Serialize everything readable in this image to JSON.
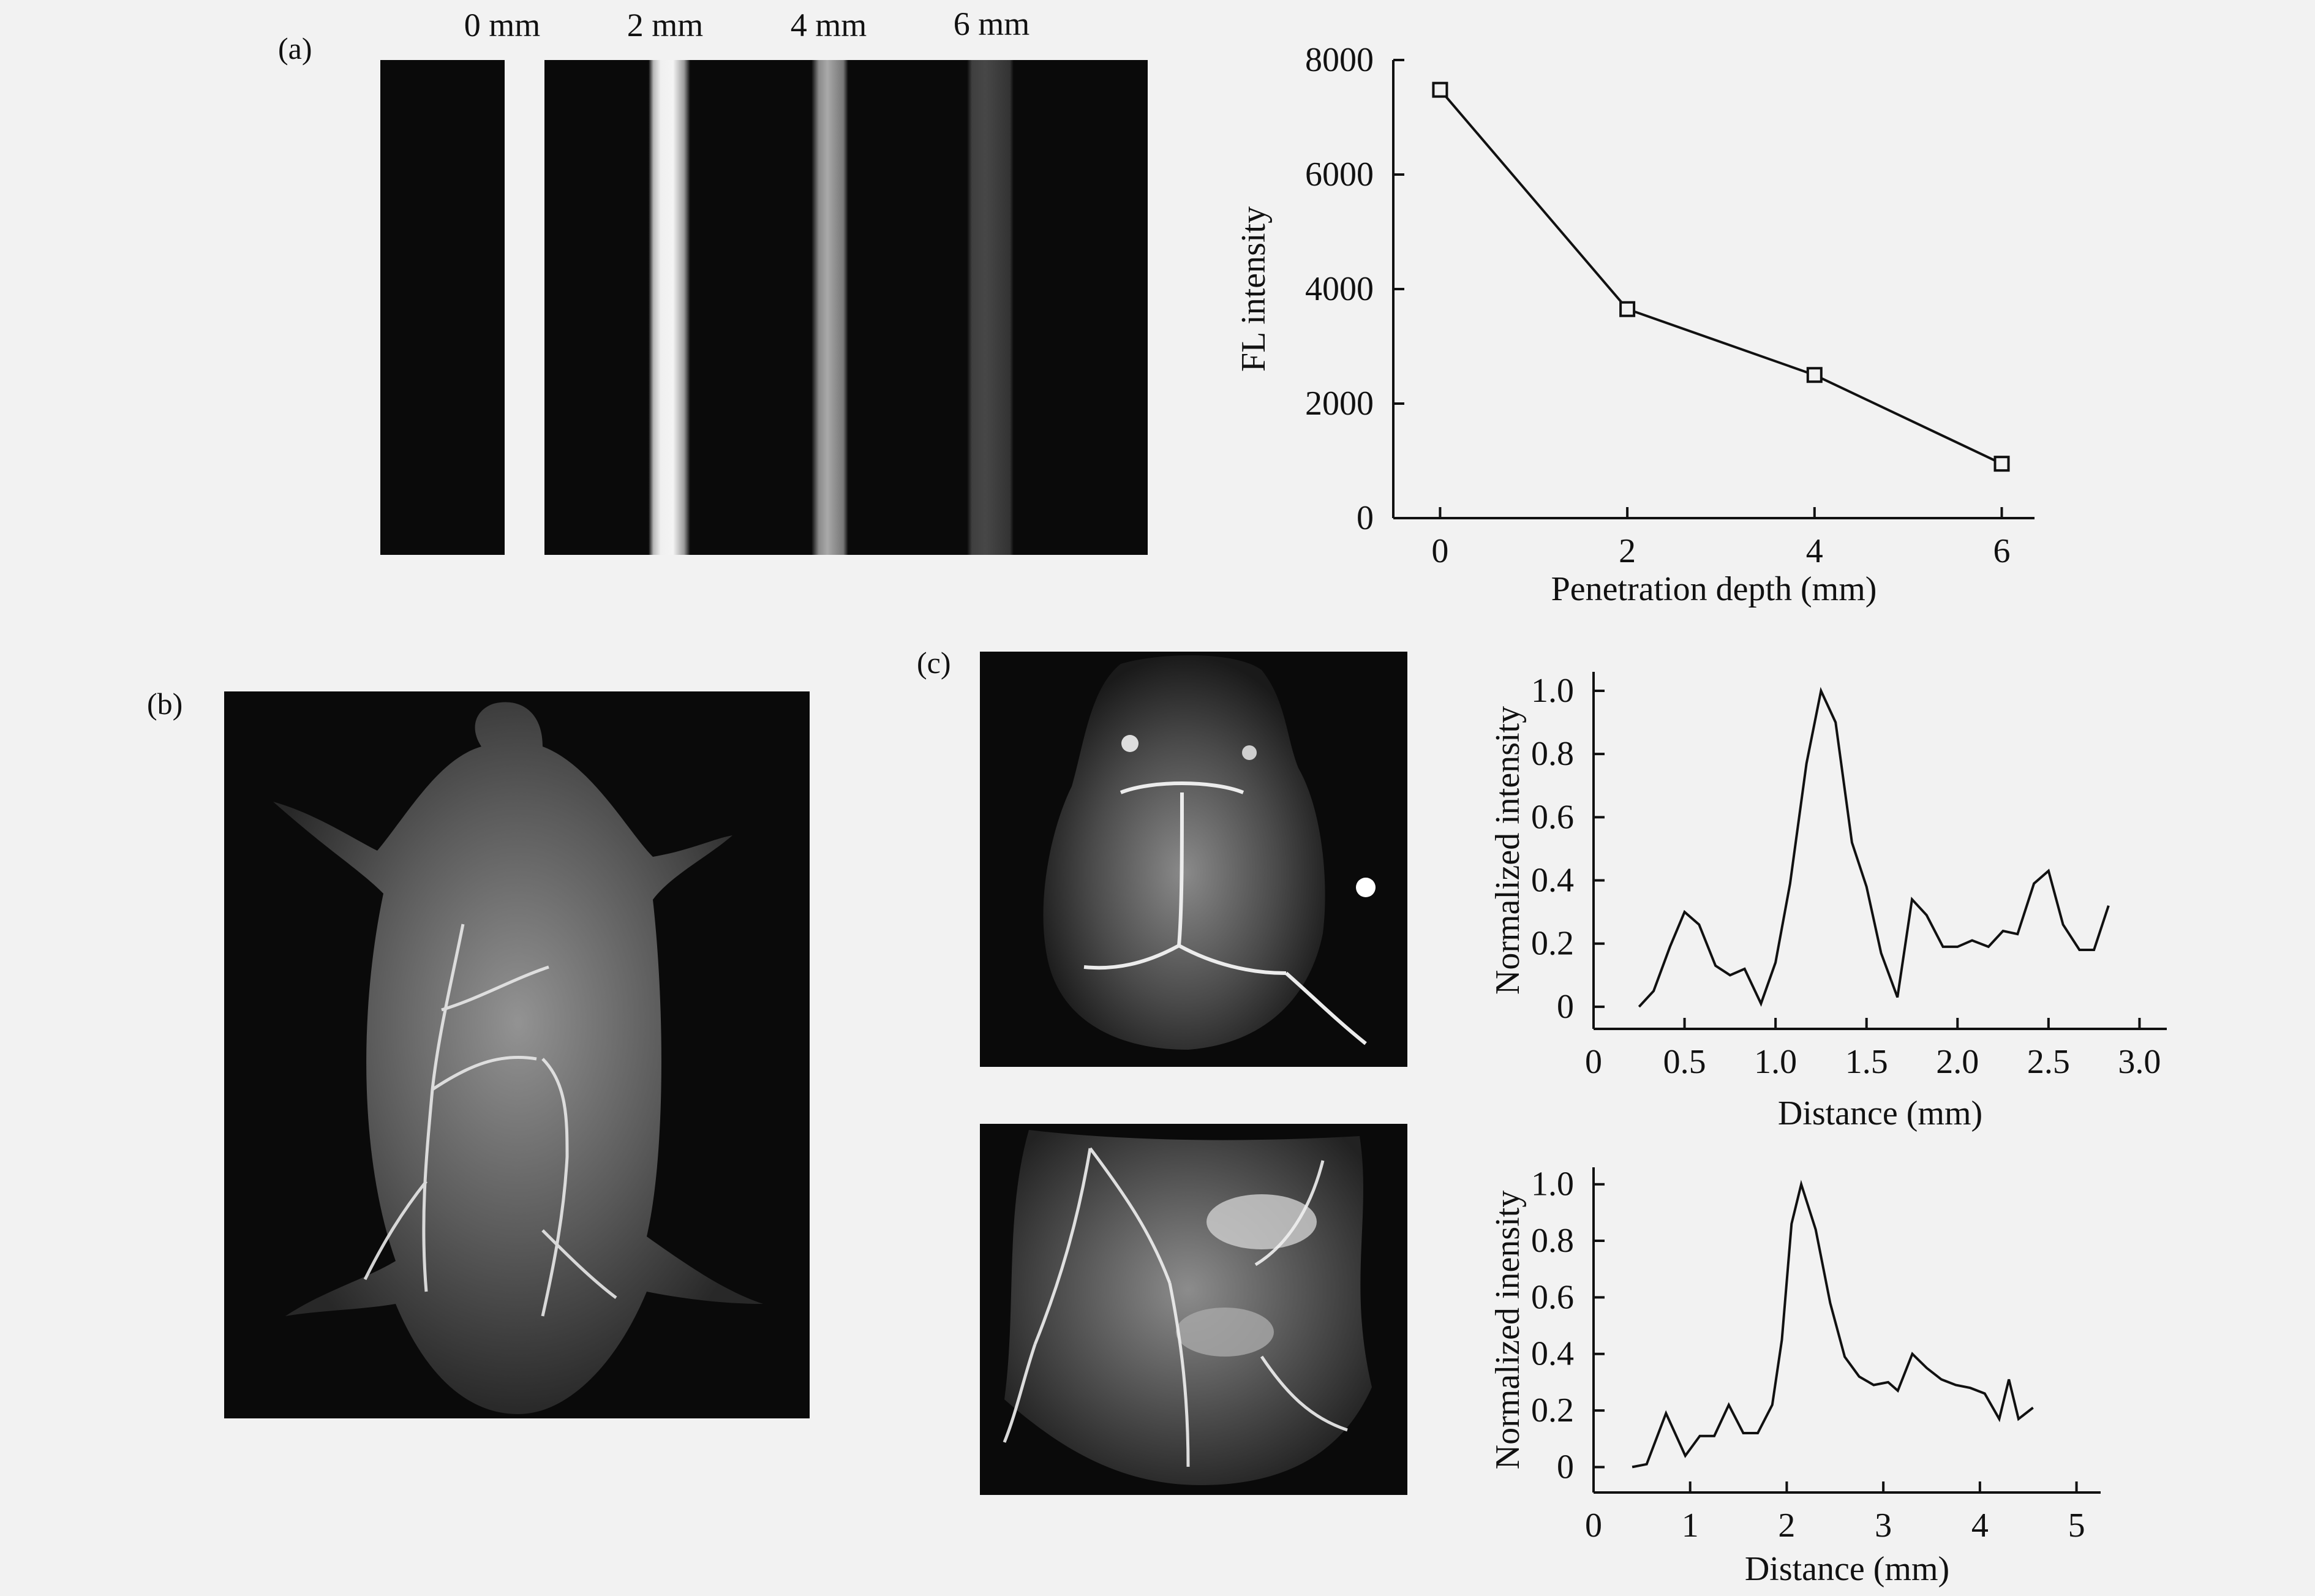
{
  "panels": {
    "a": {
      "label": "(a)",
      "depth_labels": [
        "0 mm",
        "2 mm",
        "4 mm",
        "6 mm"
      ]
    },
    "b": {
      "label": "(b)"
    },
    "c": {
      "label": "(c)"
    }
  },
  "chart_data": [
    {
      "id": "fl-vs-depth",
      "type": "line",
      "x": [
        0,
        2,
        4,
        6
      ],
      "y": [
        7480,
        3650,
        2500,
        950
      ],
      "xlabel": "Penetration depth (mm)",
      "ylabel": "FL intensity",
      "xlim": [
        -0.5,
        6.35
      ],
      "ylim": [
        0,
        8000
      ],
      "xticks": [
        0,
        2,
        4,
        6
      ],
      "yticks": [
        0,
        2000,
        4000,
        6000,
        8000
      ],
      "marker": "square"
    },
    {
      "id": "profile-top",
      "type": "line",
      "x": [
        0.25,
        0.33,
        0.42,
        0.5,
        0.58,
        0.67,
        0.75,
        0.83,
        0.92,
        1.0,
        1.08,
        1.17,
        1.25,
        1.33,
        1.42,
        1.5,
        1.58,
        1.67,
        1.75,
        1.83,
        1.92,
        2.0,
        2.08,
        2.17,
        2.25,
        2.33,
        2.42,
        2.5,
        2.58,
        2.67,
        2.75,
        2.83
      ],
      "y": [
        0.0,
        0.05,
        0.19,
        0.3,
        0.26,
        0.13,
        0.1,
        0.12,
        0.01,
        0.14,
        0.39,
        0.77,
        1.0,
        0.9,
        0.52,
        0.38,
        0.17,
        0.03,
        0.34,
        0.29,
        0.19,
        0.19,
        0.21,
        0.19,
        0.24,
        0.23,
        0.39,
        0.43,
        0.26,
        0.18,
        0.18,
        0.32
      ],
      "xlabel": "Distance (mm)",
      "ylabel": "Normalized intensity",
      "xlim": [
        0,
        3.15
      ],
      "ylim": [
        -0.07,
        1.06
      ],
      "xticks": [
        0,
        0.5,
        1.0,
        1.5,
        2.0,
        2.5,
        3.0
      ],
      "xtick_labels": [
        "0",
        "0.5",
        "1.0",
        "1.5",
        "2.0",
        "2.5",
        "3.0"
      ],
      "yticks": [
        0,
        0.2,
        0.4,
        0.6,
        0.8,
        1.0
      ],
      "ytick_labels": [
        "0",
        "0.2",
        "0.4",
        "0.6",
        "0.8",
        "1.0"
      ]
    },
    {
      "id": "profile-bottom",
      "type": "line",
      "x": [
        0.4,
        0.55,
        0.75,
        0.95,
        1.1,
        1.25,
        1.4,
        1.55,
        1.7,
        1.85,
        1.95,
        2.05,
        2.15,
        2.3,
        2.45,
        2.6,
        2.75,
        2.9,
        3.05,
        3.15,
        3.3,
        3.45,
        3.6,
        3.75,
        3.9,
        4.05,
        4.2,
        4.3,
        4.4,
        4.55
      ],
      "y": [
        0.0,
        0.01,
        0.19,
        0.04,
        0.11,
        0.11,
        0.22,
        0.12,
        0.12,
        0.22,
        0.45,
        0.86,
        1.0,
        0.84,
        0.58,
        0.39,
        0.32,
        0.29,
        0.3,
        0.27,
        0.4,
        0.35,
        0.31,
        0.29,
        0.28,
        0.26,
        0.17,
        0.31,
        0.17,
        0.21
      ],
      "xlabel": "Distance (mm)",
      "ylabel": "Normalized inensity",
      "xlim": [
        0,
        5.25
      ],
      "ylim": [
        -0.09,
        1.06
      ],
      "xticks": [
        0,
        1,
        2,
        3,
        4,
        5
      ],
      "xtick_labels": [
        "0",
        "1",
        "2",
        "3",
        "4",
        "5"
      ],
      "yticks": [
        0,
        0.2,
        0.4,
        0.6,
        0.8,
        1.0
      ],
      "ytick_labels": [
        "0",
        "0.2",
        "0.4",
        "0.6",
        "0.8",
        "1.0"
      ]
    }
  ]
}
